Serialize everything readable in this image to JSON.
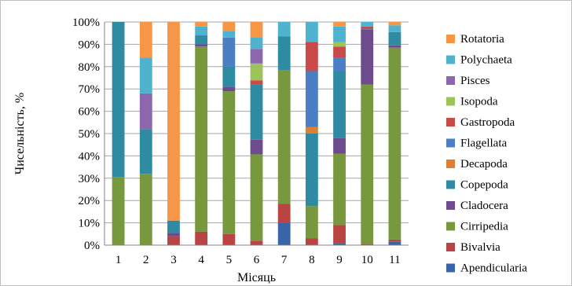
{
  "chart_data": {
    "type": "bar",
    "stacked": true,
    "normalized": true,
    "xlabel": "Місяць",
    "ylabel": "Чисельність, %",
    "ylim": [
      0,
      100
    ],
    "y_ticks": [
      0,
      10,
      20,
      30,
      40,
      50,
      60,
      70,
      80,
      90,
      100
    ],
    "y_tick_format": "{v}%",
    "grid": "horizontal",
    "legend_position": "right",
    "categories": [
      "1",
      "2",
      "3",
      "4",
      "5",
      "6",
      "7",
      "8",
      "9",
      "10",
      "11"
    ],
    "series": [
      {
        "name": "Apendicularia",
        "color": "#3a64a8",
        "values": [
          0,
          0,
          0,
          0,
          0,
          0,
          10,
          0,
          1,
          0,
          1.5
        ]
      },
      {
        "name": "Bivalvia",
        "color": "#b94443",
        "values": [
          0,
          0,
          4,
          6,
          5,
          2,
          8.5,
          3,
          8,
          0.5,
          1
        ]
      },
      {
        "name": "Cirripedia",
        "color": "#77983d",
        "values": [
          30.5,
          32,
          0,
          83,
          64,
          38.5,
          60,
          14.5,
          32,
          71.5,
          86
        ]
      },
      {
        "name": "Cladocera",
        "color": "#6d4b8c",
        "values": [
          0,
          0,
          1.5,
          1,
          2,
          6.5,
          0,
          0,
          7,
          24.5,
          1
        ]
      },
      {
        "name": "Copepoda",
        "color": "#2f8aa3",
        "values": [
          69.5,
          20,
          5.5,
          4,
          9,
          24.5,
          15,
          32.5,
          30,
          0.5,
          6
        ]
      },
      {
        "name": "Decapoda",
        "color": "#e07e33",
        "values": [
          0,
          0,
          0,
          0,
          0,
          0,
          0,
          3,
          0,
          0,
          0
        ]
      },
      {
        "name": "Flagellata",
        "color": "#4a7fc4",
        "values": [
          0,
          0,
          0,
          0,
          13,
          0,
          0,
          25,
          6,
          0,
          0
        ]
      },
      {
        "name": "Gastropoda",
        "color": "#c94a49",
        "values": [
          0,
          0,
          0,
          0,
          0,
          2,
          0,
          13,
          5,
          1,
          0
        ]
      },
      {
        "name": "Isopoda",
        "color": "#9dc45a",
        "values": [
          0,
          0,
          0,
          0,
          0,
          7.5,
          0,
          0,
          2,
          0,
          0
        ]
      },
      {
        "name": "Pisces",
        "color": "#8c67b0",
        "values": [
          0,
          16,
          0,
          0,
          0,
          6.5,
          0,
          0,
          0,
          0,
          0
        ]
      },
      {
        "name": "Polychaeta",
        "color": "#4fb3cf",
        "values": [
          0,
          16,
          0,
          4,
          3,
          5,
          6.5,
          9,
          7,
          2,
          3
        ]
      },
      {
        "name": "Rotatoria",
        "color": "#f79646",
        "values": [
          0,
          16,
          89,
          2,
          4,
          7,
          0,
          0,
          2,
          0,
          1.5
        ]
      }
    ]
  }
}
